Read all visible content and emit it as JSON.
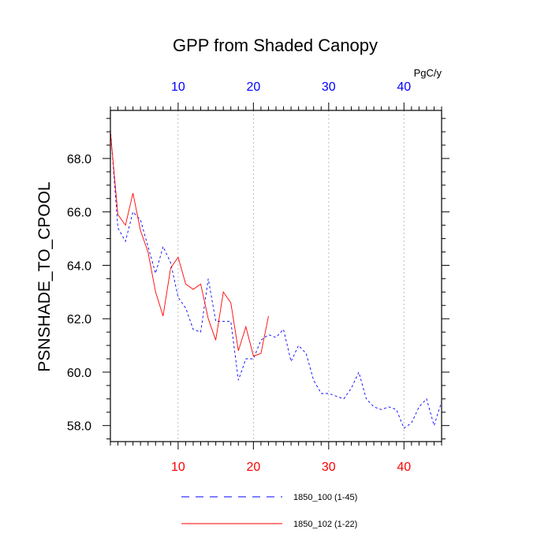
{
  "chart_data": {
    "type": "line",
    "title": "GPP from Shaded Canopy",
    "ylabel": "PSNSHADE_TO_CPOOL",
    "units": "PgC/y",
    "xlim": [
      1,
      45
    ],
    "ylim": [
      57.4,
      69.8
    ],
    "x_ticks": [
      10,
      20,
      30,
      40
    ],
    "y_ticks": [
      58.0,
      60.0,
      62.0,
      64.0,
      66.0,
      68.0
    ],
    "y_tick_labels": [
      "58.0",
      "60.0",
      "62.0",
      "64.0",
      "66.0",
      "68.0"
    ],
    "grid": "vertical dotted at major x ticks",
    "legend_position": "bottom",
    "series": [
      {
        "name": "1850_100 (1-45)",
        "color": "#0000ff",
        "style": "dashed",
        "x": [
          1,
          2,
          3,
          4,
          5,
          6,
          7,
          8,
          9,
          10,
          11,
          12,
          13,
          14,
          15,
          16,
          17,
          18,
          19,
          20,
          21,
          22,
          23,
          24,
          25,
          26,
          27,
          28,
          29,
          30,
          31,
          32,
          33,
          34,
          35,
          36,
          37,
          38,
          39,
          40,
          41,
          42,
          43,
          44,
          45
        ],
        "values": [
          69.1,
          65.4,
          64.9,
          66.0,
          65.7,
          64.7,
          63.7,
          64.7,
          64.1,
          62.8,
          62.4,
          61.6,
          61.5,
          63.5,
          61.9,
          61.9,
          61.9,
          59.7,
          60.5,
          60.5,
          61.2,
          61.4,
          61.3,
          61.6,
          60.4,
          61.0,
          60.7,
          59.7,
          59.2,
          59.2,
          59.1,
          59.0,
          59.4,
          60.0,
          59.0,
          58.7,
          58.6,
          58.7,
          58.6,
          57.9,
          58.1,
          58.7,
          59.0,
          58.0,
          58.9
        ]
      },
      {
        "name": "1850_102 (1-22)",
        "color": "#ff0000",
        "style": "solid",
        "x": [
          1,
          2,
          3,
          4,
          5,
          6,
          7,
          8,
          9,
          10,
          11,
          12,
          13,
          14,
          15,
          16,
          17,
          18,
          19,
          20,
          21,
          22
        ],
        "values": [
          69.0,
          65.9,
          65.5,
          66.7,
          65.3,
          64.5,
          63.0,
          62.1,
          63.9,
          64.3,
          63.3,
          63.1,
          63.3,
          62.0,
          61.2,
          63.0,
          62.6,
          60.8,
          61.7,
          60.6,
          60.7,
          62.1
        ]
      }
    ]
  }
}
